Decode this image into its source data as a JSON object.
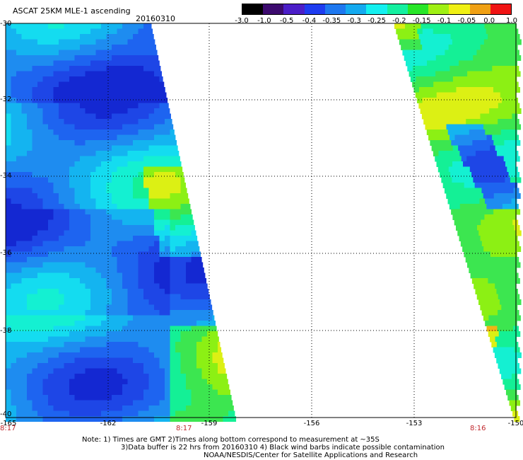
{
  "header": {
    "title": "ASCAT 25KM MLE-1 ascending",
    "date": "20160310"
  },
  "colorbar": {
    "labels": [
      "-3.0",
      "-1.0",
      "-0.5",
      "-0.4",
      "-0.35",
      "-0.3",
      "-0.25",
      "-0.2",
      "-0.15",
      "-0.1",
      "-0.05",
      "0.0",
      "1.0"
    ],
    "colors": [
      "#000000",
      "#3c0a6e",
      "#4b1ec8",
      "#1e3cf0",
      "#1e78f0",
      "#14aaf0",
      "#14f0f0",
      "#14f0a0",
      "#28e628",
      "#a0f014",
      "#f0f014",
      "#f0a014",
      "#f01414"
    ]
  },
  "axes": {
    "lat_labels": [
      "-30",
      "-32",
      "-34",
      "-36",
      "-38",
      "-40"
    ],
    "lon_labels": [
      "-165",
      "-162",
      "-159",
      "-156",
      "-153",
      "-150"
    ]
  },
  "time_labels": [
    "8:17",
    "8:17",
    "8:16"
  ],
  "notes": {
    "line1": "Note: 1) Times are GMT 2)Times along bottom correspond to measurement at ~35S",
    "line2": "3)Data buffer is 22 hrs from 20160310 4) Black wind barbs indicate possible contamination",
    "line3": "NOAA/NESDIS/Center for Satellite Applications and Research"
  }
}
